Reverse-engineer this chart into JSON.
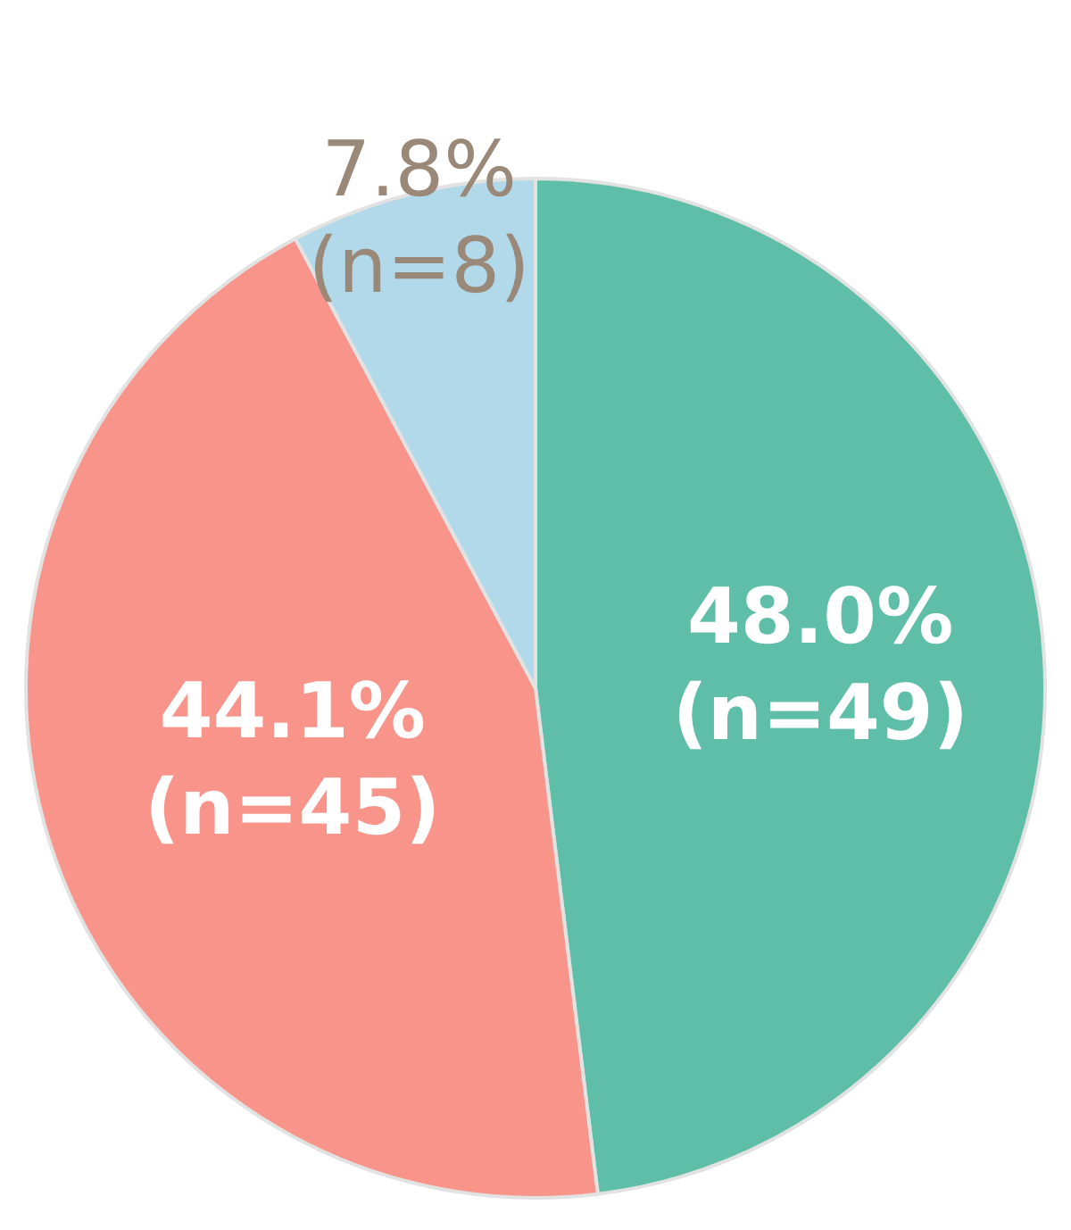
{
  "chart_data": {
    "type": "pie",
    "categories": [
      null,
      null,
      null
    ],
    "values": [
      48.0,
      44.1,
      7.8
    ],
    "colors": [
      "#5ebea8",
      "#f8948a",
      "#b2d9ea"
    ],
    "value_labels": [
      "48.0%\n(n=49)",
      "44.1%\n(n=45)",
      "7.8%\n(n=8)"
    ]
  }
}
